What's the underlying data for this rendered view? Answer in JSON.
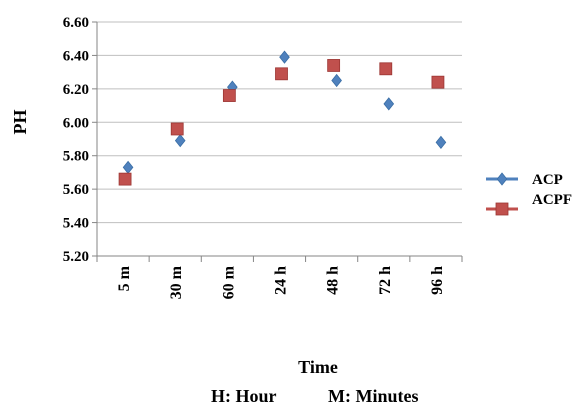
{
  "chart_data": {
    "type": "scatter",
    "xlabel": "Time",
    "ylabel": "PH",
    "categories": [
      "5 m",
      "30 m",
      "60 m",
      "24 h",
      "48 h",
      "72 h",
      "96 h"
    ],
    "ylim": [
      5.2,
      6.6
    ],
    "yticks": [
      "5.20",
      "5.40",
      "5.60",
      "5.80",
      "6.00",
      "6.20",
      "6.40",
      "6.60"
    ],
    "grid": "horizontal",
    "legend_position": "right",
    "series": [
      {
        "name": "ACP",
        "marker": "diamond",
        "color": "#4f81bd",
        "values": [
          5.73,
          5.89,
          6.21,
          6.39,
          6.25,
          6.11,
          5.88
        ]
      },
      {
        "name": "ACPF",
        "marker": "square",
        "color": "#c0504d",
        "values": [
          5.66,
          5.96,
          6.16,
          6.29,
          6.34,
          6.32,
          6.24
        ]
      }
    ],
    "note": {
      "hour": "H: Hour",
      "minutes": "M: Minutes"
    }
  }
}
